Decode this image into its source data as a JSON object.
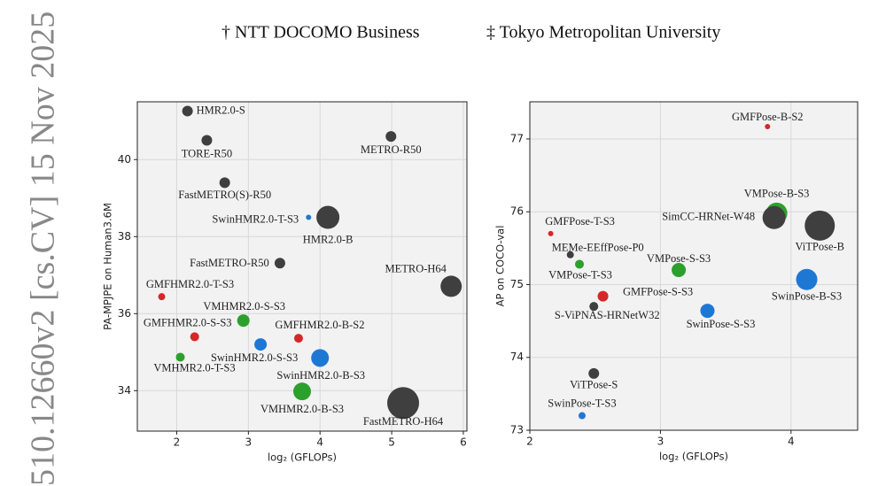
{
  "sidebar": "510.12660v2  [cs.CV]  15 Nov 2025",
  "affiliations": [
    "† NTT DOCOMO Business",
    "‡ Tokyo Metropolitan University"
  ],
  "chart_data": [
    {
      "type": "scatter",
      "xlabel": "log₂ (GFLOPs)",
      "ylabel": "PA-MPJPE on Human3.6M",
      "xlim": [
        1.45,
        6.05
      ],
      "ylim": [
        32.95,
        41.5
      ],
      "xticks": [
        2,
        3,
        4,
        5,
        6
      ],
      "yticks": [
        34,
        36,
        38,
        40
      ],
      "grid": true,
      "point_labels": [
        "HMR2.0-S",
        "TORE-R50",
        "FastMETRO(S)-R50",
        "METRO-R50",
        "SwinHMR2.0-T-S3",
        "HMR2.0-B",
        "FastMETRO-R50",
        "METRO-H64",
        "GMFHMR2.0-T-S3",
        "VMHMR2.0-S-S3",
        "GMFHMR2.0-S-S3",
        "GMFHMR2.0-B-S2",
        "SwinHMR2.0-S-S3",
        "VMHMR2.0-T-S3",
        "SwinHMR2.0-B-S3",
        "VMHMR2.0-B-S3",
        "FastMETRO-H64"
      ],
      "x": [
        2.15,
        2.42,
        2.67,
        4.99,
        3.84,
        4.11,
        3.44,
        5.83,
        1.79,
        2.93,
        2.25,
        3.7,
        3.17,
        2.05,
        4.0,
        3.75,
        5.16
      ],
      "values": [
        41.26,
        40.5,
        39.4,
        40.6,
        38.5,
        38.5,
        37.31,
        36.71,
        36.44,
        35.82,
        35.4,
        35.36,
        35.2,
        34.87,
        34.85,
        33.98,
        33.68
      ],
      "sizes": [
        36,
        36,
        36,
        36,
        9,
        169,
        36,
        144,
        16,
        49,
        25,
        25,
        49,
        25,
        100,
        100,
        324
      ],
      "colors": [
        "#3f3f3f",
        "#3f3f3f",
        "#3f3f3f",
        "#3f3f3f",
        "#1f77d4",
        "#3f3f3f",
        "#3f3f3f",
        "#3f3f3f",
        "#d62728",
        "#2ca02c",
        "#d62728",
        "#d62728",
        "#1f77d4",
        "#2ca02c",
        "#1f77d4",
        "#2ca02c",
        "#3f3f3f"
      ]
    },
    {
      "type": "scatter",
      "xlabel": "log₂ (GFLOPs)",
      "ylabel": "AP on COCO-val",
      "xlim": [
        2,
        4.51
      ],
      "ylim": [
        73,
        77.51
      ],
      "xticks": [
        2,
        3,
        4
      ],
      "yticks": [
        73,
        74,
        75,
        76,
        77
      ],
      "grid": true,
      "point_labels": [
        "GMFPose-B-S2",
        "VMPose-B-S3",
        "SimCC-HRNet-W48",
        "ViTPose-B",
        "GMFPose-T-S3",
        "MEMe-EEffPose-P0",
        "VMPose-T-S3",
        "VMPose-S-S3",
        "SwinPose-B-S3",
        "GMFPose-S-S3",
        "S-ViPNAS-HRNetW32",
        "SwinPose-S-S3",
        "ViTPose-S",
        "SwinPose-T-S3"
      ],
      "x": [
        3.82,
        3.89,
        3.87,
        4.22,
        2.16,
        2.31,
        2.38,
        3.14,
        4.12,
        2.56,
        2.49,
        3.36,
        2.49,
        2.4
      ],
      "values": [
        77.17,
        75.98,
        75.92,
        75.81,
        75.7,
        75.41,
        75.28,
        75.2,
        75.07,
        74.84,
        74.7,
        74.64,
        73.78,
        73.2
      ],
      "sizes": [
        9,
        144,
        169,
        289,
        9,
        16,
        25,
        64,
        144,
        36,
        25,
        64,
        36,
        16
      ],
      "colors": [
        "#d62728",
        "#2ca02c",
        "#3f3f3f",
        "#3f3f3f",
        "#d62728",
        "#3f3f3f",
        "#2ca02c",
        "#2ca02c",
        "#1f77d4",
        "#d62728",
        "#3f3f3f",
        "#1f77d4",
        "#3f3f3f",
        "#1f77d4"
      ]
    }
  ]
}
